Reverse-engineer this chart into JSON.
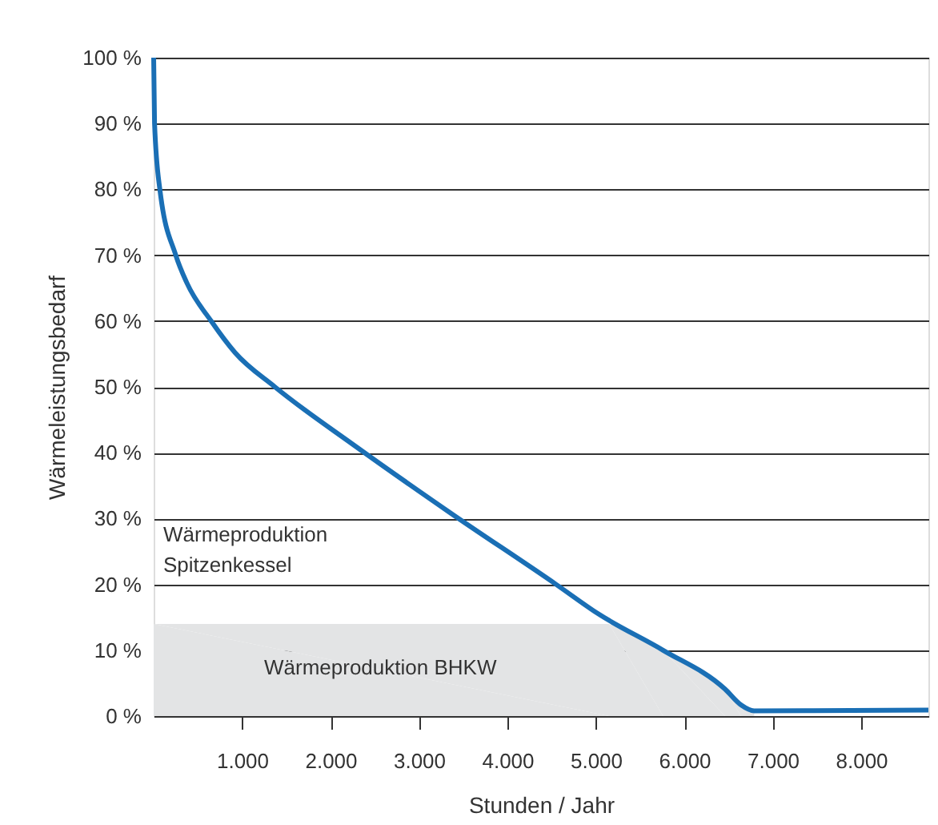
{
  "chart_data": {
    "type": "line",
    "xlabel": "Stunden / Jahr",
    "ylabel": "Wärmeleistungsbedarf",
    "x": [
      0,
      10,
      70,
      250,
      375,
      650,
      920,
      1370,
      2280,
      3340,
      4550,
      5030,
      5760,
      6460,
      6640,
      6790,
      8760
    ],
    "series": [
      {
        "type": "area",
        "color": "#e3e4e5",
        "x": [
          0,
          5150,
          5760,
          6460,
          6640,
          6790
        ],
        "values": [
          14,
          14,
          10,
          4.1,
          1.7,
          0.8
        ]
      },
      {
        "color": "#1a6fb5",
        "values": [
          100,
          90,
          80,
          70,
          65.8,
          60,
          55.2,
          50,
          41,
          31,
          20,
          15.5,
          10,
          4.1,
          1.7,
          0.8,
          0.9
        ]
      }
    ],
    "xlim": [
      0,
      8760
    ],
    "xticks": [
      {
        "value": 1000,
        "label": "1.000"
      },
      {
        "value": 2000,
        "label": "2.000"
      },
      {
        "value": 3000,
        "label": "3.000"
      },
      {
        "value": 4000,
        "label": "4.000"
      },
      {
        "value": 5000,
        "label": "5.000"
      },
      {
        "value": 6000,
        "label": "6.000"
      },
      {
        "value": 7000,
        "label": "7.000"
      },
      {
        "value": 8000,
        "label": "8.000"
      }
    ],
    "ylim": [
      0,
      100
    ],
    "yticks": [
      {
        "value": 0,
        "label": "0 %"
      },
      {
        "value": 10,
        "label": "10 %"
      },
      {
        "value": 20,
        "label": "20 %"
      },
      {
        "value": 30,
        "label": "30 %"
      },
      {
        "value": 40,
        "label": "40 %"
      },
      {
        "value": 50,
        "label": "50 %"
      },
      {
        "value": 60,
        "label": "60 %"
      },
      {
        "value": 70,
        "label": "70 %"
      },
      {
        "value": 80,
        "label": "80 %"
      },
      {
        "value": 90,
        "label": "90 %"
      },
      {
        "value": 100,
        "label": "100 %"
      }
    ],
    "grid": "y",
    "annotations": [
      "Wärmeproduktion\nSpitzenkessel",
      "Wärmeproduktion BHKW"
    ]
  }
}
